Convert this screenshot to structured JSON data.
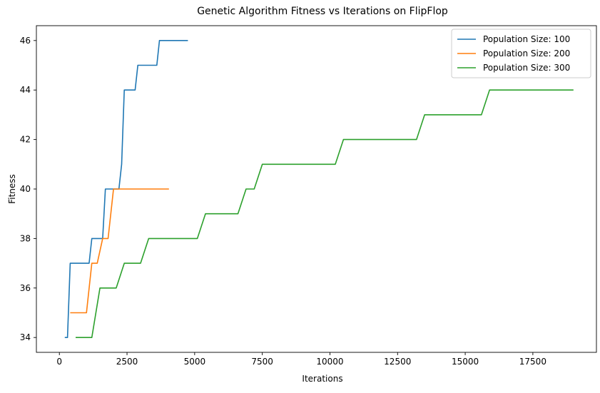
{
  "chart_data": {
    "type": "line",
    "title": "Genetic Algorithm Fitness vs Iterations on FlipFlop",
    "xlabel": "Iterations",
    "ylabel": "Fitness",
    "xlim": [
      -850,
      19850
    ],
    "ylim": [
      33.4,
      46.6
    ],
    "xticks": [
      0,
      2500,
      5000,
      7500,
      10000,
      12500,
      15000,
      17500
    ],
    "xtick_labels": [
      "0",
      "2500",
      "5000",
      "7500",
      "10000",
      "12500",
      "15000",
      "17500"
    ],
    "yticks": [
      34,
      36,
      38,
      40,
      42,
      44,
      46
    ],
    "ytick_labels": [
      "34",
      "36",
      "38",
      "40",
      "42",
      "44",
      "46"
    ],
    "grid": false,
    "legend_position": "top-right",
    "series": [
      {
        "name": "Population Size: 100",
        "color": "#1f77b4",
        "points": [
          [
            200,
            34
          ],
          [
            300,
            34
          ],
          [
            400,
            37
          ],
          [
            1100,
            37
          ],
          [
            1200,
            38
          ],
          [
            1600,
            38
          ],
          [
            1700,
            40
          ],
          [
            2200,
            40
          ],
          [
            2300,
            41
          ],
          [
            2400,
            44
          ],
          [
            2800,
            44
          ],
          [
            2900,
            45
          ],
          [
            3600,
            45
          ],
          [
            3700,
            46
          ],
          [
            4750,
            46
          ]
        ]
      },
      {
        "name": "Population Size: 200",
        "color": "#ff7f0e",
        "points": [
          [
            400,
            35
          ],
          [
            1000,
            35
          ],
          [
            1200,
            37
          ],
          [
            1400,
            37
          ],
          [
            1600,
            38
          ],
          [
            1800,
            38
          ],
          [
            2000,
            40
          ],
          [
            4050,
            40
          ]
        ]
      },
      {
        "name": "Population Size: 300",
        "color": "#2ca02c",
        "points": [
          [
            600,
            34
          ],
          [
            1200,
            34
          ],
          [
            1500,
            36
          ],
          [
            2100,
            36
          ],
          [
            2400,
            37
          ],
          [
            3000,
            37
          ],
          [
            3300,
            38
          ],
          [
            5100,
            38
          ],
          [
            5400,
            39
          ],
          [
            6600,
            39
          ],
          [
            6900,
            40
          ],
          [
            7200,
            40
          ],
          [
            7500,
            41
          ],
          [
            10200,
            41
          ],
          [
            10500,
            42
          ],
          [
            13200,
            42
          ],
          [
            13500,
            43
          ],
          [
            15600,
            43
          ],
          [
            15900,
            44
          ],
          [
            19000,
            44
          ]
        ]
      }
    ]
  }
}
